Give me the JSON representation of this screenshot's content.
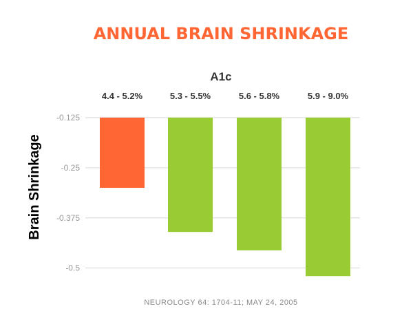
{
  "chart_data": {
    "type": "bar",
    "title": "ANNUAL BRAIN SHRINKAGE",
    "category_group_label": "A1c",
    "categories": [
      "4.4 - 5.2%",
      "5.3 - 5.5%",
      "5.6 - 5.8%",
      "5.9 - 9.0%"
    ],
    "values": [
      -0.3,
      -0.41,
      -0.456,
      -0.52
    ],
    "ylabel": "Brain Shrinkage",
    "xlabel": "",
    "ylim": [
      -0.53,
      -0.125
    ],
    "yticks": [
      -0.125,
      -0.25,
      -0.375,
      -0.5
    ],
    "ytick_labels": [
      "-0.125",
      "-0.25",
      "-0.375",
      "-0.5"
    ],
    "bar_colors": [
      "#ff6633",
      "#99cc33",
      "#99cc33",
      "#99cc33"
    ],
    "grid": true,
    "legend": "none",
    "source": "NEUROLOGY 64: 1704-11; MAY 24, 2005"
  }
}
